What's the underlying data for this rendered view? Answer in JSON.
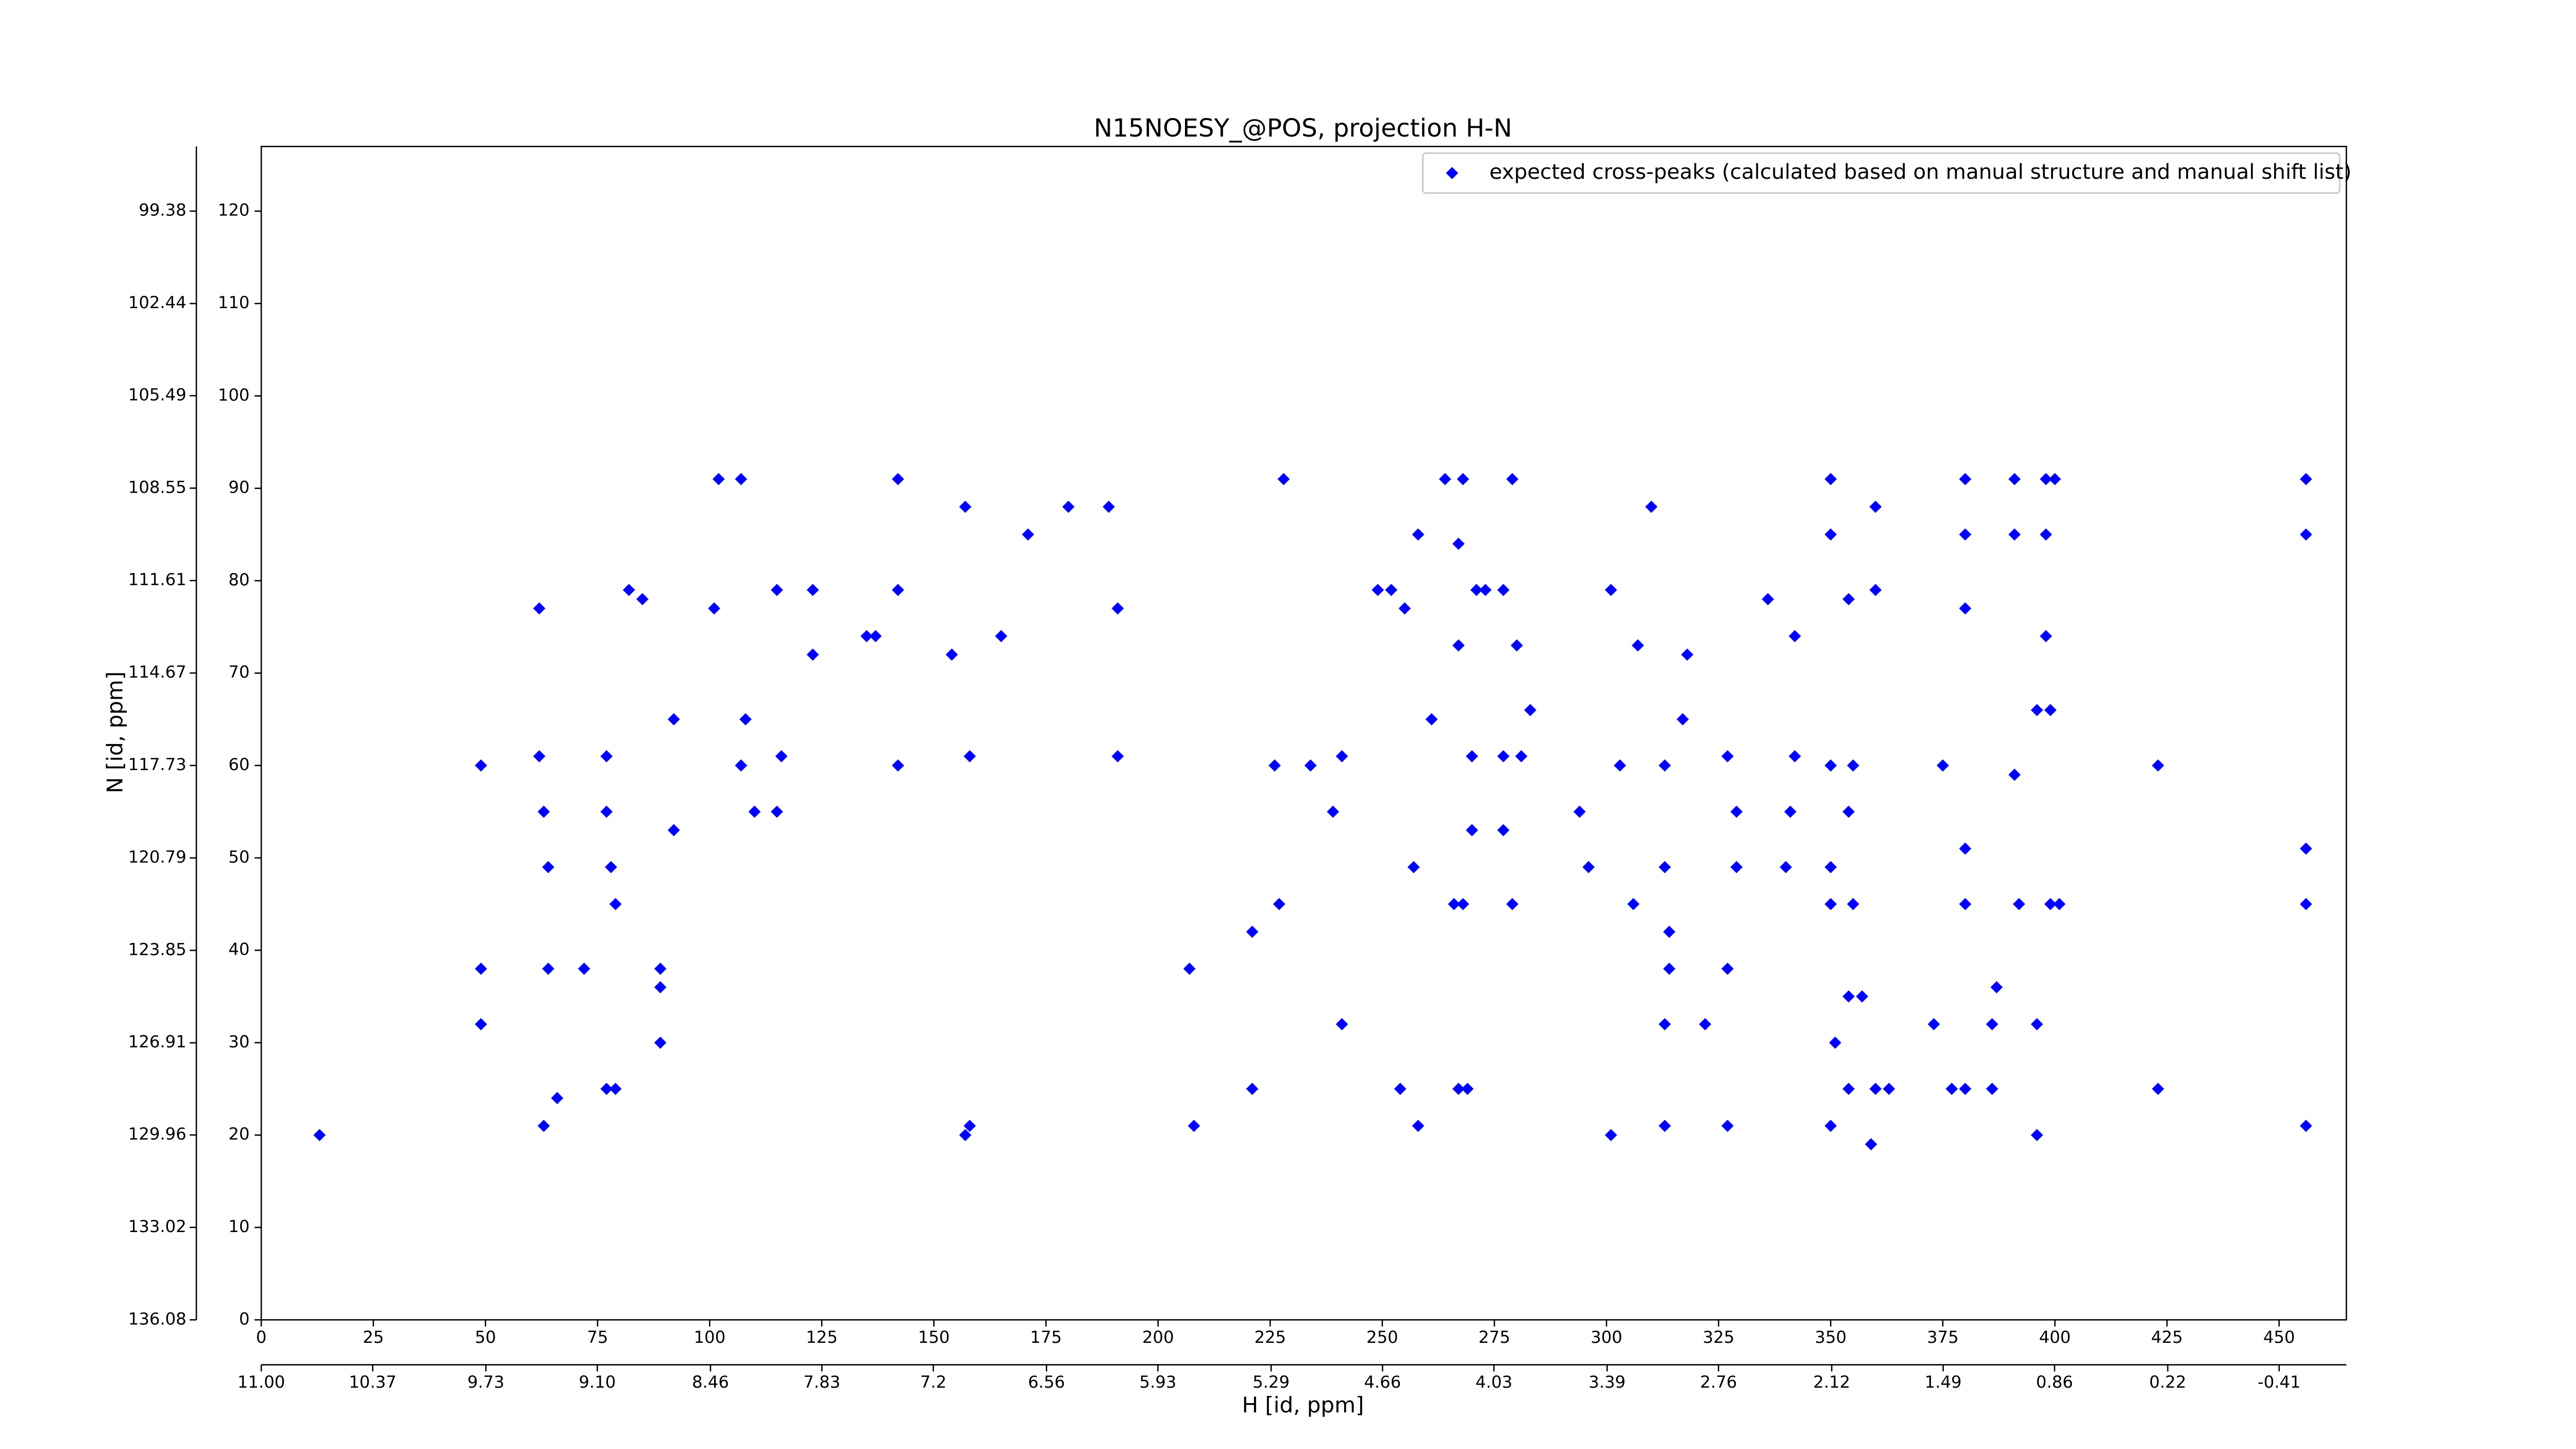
{
  "chart_data": {
    "type": "scatter",
    "title": "N15NOESY_@POS, projection H-N",
    "xlabel": "H [id, ppm]",
    "ylabel": "N [id, ppm]",
    "legend": "upper right",
    "xlim": [
      0,
      465
    ],
    "xticks": [
      0,
      25,
      50,
      75,
      100,
      125,
      150,
      175,
      200,
      225,
      250,
      275,
      300,
      325,
      350,
      375,
      400,
      425,
      450
    ],
    "ylim": [
      0,
      127
    ],
    "yticks": [
      0,
      10,
      20,
      30,
      40,
      50,
      60,
      70,
      80,
      90,
      100,
      110,
      120
    ],
    "x2lim": [
      11.0,
      -0.79
    ],
    "x2ticks": [
      {
        "value": 11.0,
        "label": "11.00"
      },
      10.37,
      9.73,
      {
        "value": 9.1,
        "label": "9.10"
      },
      8.46,
      7.83,
      7.2,
      6.56,
      5.93,
      5.29,
      4.66,
      4.03,
      3.39,
      2.76,
      2.12,
      1.49,
      0.86,
      0.22,
      -0.41
    ],
    "y2lim": [
      136.08,
      97.24
    ],
    "y2ticks": [
      99.38,
      102.44,
      105.49,
      108.55,
      111.61,
      114.67,
      117.73,
      120.79,
      123.85,
      126.91,
      129.96,
      133.02,
      136.08
    ],
    "series": [
      {
        "name": "expected cross-peaks (calculated based on manual structure and manual shift list)",
        "color": "#0000ff",
        "x": [
          49,
          49,
          49,
          62,
          62,
          63,
          64,
          64,
          63,
          66,
          72,
          77,
          77,
          78,
          79,
          77,
          79,
          82,
          85,
          89,
          89,
          89,
          92,
          92,
          101,
          102,
          107,
          107,
          108,
          110,
          115,
          115,
          116,
          123,
          123,
          135,
          137,
          142,
          142,
          142,
          154,
          157,
          158,
          157,
          158,
          165,
          171,
          180,
          189,
          191,
          191,
          207,
          208,
          221,
          221,
          226,
          228,
          227,
          234,
          239,
          241,
          241,
          249,
          252,
          255,
          258,
          264,
          267,
          268,
          271,
          273,
          277,
          279,
          267,
          280,
          261,
          270,
          277,
          281,
          283,
          257,
          270,
          277,
          266,
          268,
          279,
          254,
          258,
          267,
          269,
          301,
          310,
          307,
          318,
          294,
          296,
          303,
          313,
          317,
          313,
          306,
          314,
          314,
          313,
          301,
          313,
          322,
          327,
          327,
          329,
          329,
          327,
          336,
          342,
          342,
          341,
          340,
          350,
          350,
          354,
          360,
          360,
          350,
          354,
          355,
          350,
          350,
          355,
          354,
          357,
          351,
          354,
          360,
          363,
          350,
          359,
          375,
          373,
          377,
          380,
          380,
          380,
          380,
          380,
          380,
          386,
          386,
          387,
          391,
          391,
          391,
          392,
          398,
          400,
          398,
          398,
          396,
          399,
          396,
          396,
          399,
          401,
          423,
          423,
          456,
          456,
          456,
          456,
          456,
          13
        ],
        "y": [
          60,
          32,
          38,
          77,
          61,
          55,
          49,
          38,
          21,
          24,
          38,
          61,
          55,
          49,
          45,
          25,
          25,
          79,
          78,
          38,
          36,
          30,
          65,
          53,
          77,
          91,
          91,
          60,
          65,
          55,
          55,
          79,
          61,
          79,
          72,
          74,
          74,
          79,
          91,
          60,
          72,
          88,
          61,
          20,
          21,
          74,
          85,
          88,
          88,
          77,
          61,
          38,
          21,
          42,
          25,
          60,
          91,
          45,
          60,
          55,
          32,
          61,
          79,
          79,
          77,
          85,
          91,
          84,
          91,
          79,
          79,
          79,
          91,
          73,
          73,
          65,
          61,
          61,
          61,
          66,
          49,
          53,
          53,
          45,
          45,
          45,
          25,
          21,
          25,
          25,
          79,
          88,
          73,
          72,
          55,
          49,
          60,
          60,
          65,
          49,
          45,
          42,
          38,
          32,
          20,
          21,
          32,
          38,
          61,
          55,
          49,
          21,
          78,
          74,
          61,
          55,
          49,
          91,
          85,
          78,
          79,
          88,
          60,
          55,
          60,
          49,
          45,
          45,
          35,
          35,
          30,
          25,
          25,
          25,
          21,
          19,
          60,
          32,
          25,
          25,
          91,
          85,
          77,
          51,
          45,
          32,
          25,
          36,
          91,
          85,
          59,
          45,
          91,
          91,
          85,
          74,
          66,
          66,
          32,
          20,
          45,
          45,
          60,
          25,
          91,
          85,
          51,
          45,
          21,
          20
        ]
      }
    ]
  }
}
